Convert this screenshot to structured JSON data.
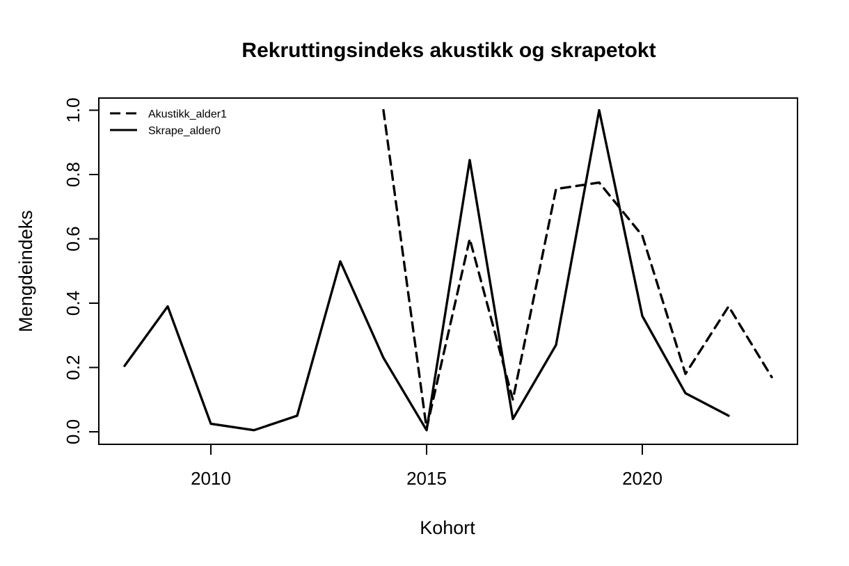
{
  "chart_data": {
    "type": "line",
    "title": "Rekruttingsindeks akustikk og skrapetokt",
    "xlabel": "Kohort",
    "ylabel": "Mengdeindeks",
    "xlim": [
      2008,
      2023
    ],
    "ylim": [
      0.0,
      1.0
    ],
    "x_ticks": [
      2010,
      2015,
      2020
    ],
    "y_ticks": [
      0.0,
      0.2,
      0.4,
      0.6,
      0.8,
      1.0
    ],
    "grid": false,
    "background_color": "#ffffff",
    "line_color": "#000000",
    "legend_position": "top-left",
    "series": [
      {
        "name": "Akustikk_alder1",
        "style": "dashed",
        "color": "#000000",
        "x": [
          2014,
          2015,
          2016,
          2017,
          2018,
          2019,
          2020,
          2021,
          2022,
          2023
        ],
        "values": [
          1.0,
          0.01,
          0.6,
          0.1,
          0.755,
          0.775,
          0.61,
          0.18,
          0.39,
          0.17
        ]
      },
      {
        "name": "Skrape_alder0",
        "style": "solid",
        "color": "#000000",
        "x": [
          2008,
          2009,
          2010,
          2011,
          2012,
          2013,
          2014,
          2015,
          2016,
          2017,
          2018,
          2019,
          2020,
          2021,
          2022
        ],
        "values": [
          0.205,
          0.39,
          0.025,
          0.005,
          0.05,
          0.53,
          0.23,
          0.005,
          0.845,
          0.04,
          0.27,
          1.0,
          0.36,
          0.12,
          0.05
        ]
      }
    ]
  }
}
